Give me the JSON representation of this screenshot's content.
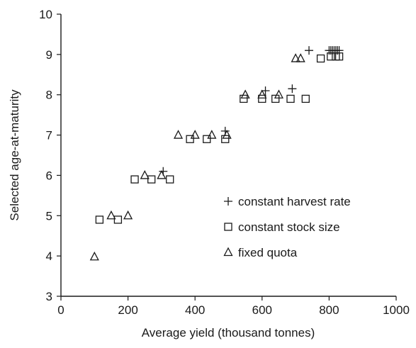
{
  "chart_data": {
    "type": "scatter",
    "title": "",
    "xlabel": "Average yield (thousand tonnes)",
    "ylabel": "Selected age-at-maturity",
    "xlim": [
      0,
      1000
    ],
    "ylim": [
      3,
      10
    ],
    "xticks": [
      0,
      200,
      400,
      600,
      800,
      1000
    ],
    "yticks": [
      3,
      4,
      5,
      6,
      7,
      8,
      9,
      10
    ],
    "grid": false,
    "legend_position": "lower-right",
    "series": [
      {
        "name": "constant harvest rate",
        "marker": "plus",
        "points": [
          [
            305,
            6.1
          ],
          [
            490,
            7.1
          ],
          [
            610,
            8.1
          ],
          [
            690,
            8.15
          ],
          [
            740,
            9.1
          ],
          [
            800,
            9.1
          ],
          [
            805,
            9.1
          ],
          [
            810,
            9.1
          ],
          [
            815,
            9.1
          ],
          [
            820,
            9.1
          ],
          [
            825,
            9.1
          ],
          [
            830,
            9.1
          ]
        ]
      },
      {
        "name": "constant stock size",
        "marker": "square",
        "points": [
          [
            115,
            4.9
          ],
          [
            170,
            4.9
          ],
          [
            220,
            5.9
          ],
          [
            270,
            5.9
          ],
          [
            325,
            5.9
          ],
          [
            385,
            6.9
          ],
          [
            435,
            6.9
          ],
          [
            490,
            6.9
          ],
          [
            545,
            7.9
          ],
          [
            600,
            7.9
          ],
          [
            640,
            7.9
          ],
          [
            685,
            7.9
          ],
          [
            730,
            7.9
          ],
          [
            775,
            8.9
          ],
          [
            805,
            8.95
          ],
          [
            820,
            8.95
          ],
          [
            830,
            8.95
          ]
        ]
      },
      {
        "name": "fixed quota",
        "marker": "triangle",
        "points": [
          [
            100,
            3.98
          ],
          [
            150,
            5.0
          ],
          [
            200,
            5.0
          ],
          [
            250,
            6.0
          ],
          [
            300,
            6.0
          ],
          [
            350,
            7.0
          ],
          [
            400,
            7.0
          ],
          [
            450,
            7.0
          ],
          [
            495,
            7.0
          ],
          [
            550,
            8.0
          ],
          [
            600,
            8.0
          ],
          [
            650,
            8.0
          ],
          [
            700,
            8.9
          ],
          [
            715,
            8.9
          ]
        ]
      }
    ]
  }
}
